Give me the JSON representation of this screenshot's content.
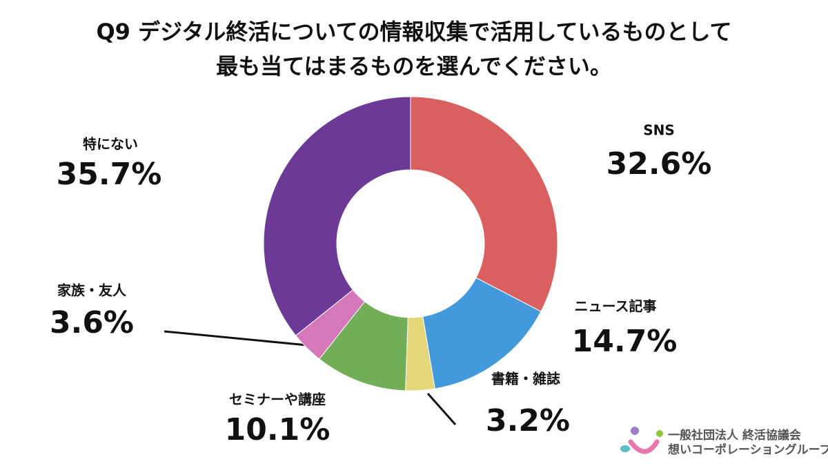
{
  "chart_data": {
    "type": "donut",
    "title": [
      "Q9 デジタル終活についての情報収集で活用しているものとして",
      "最も当てはまるものを選んでください。"
    ],
    "categories": [
      "SNS",
      "ニュース記事",
      "書籍・雑誌",
      "セミナーや講座",
      "家族・友人",
      "特にない"
    ],
    "values": [
      32.6,
      14.7,
      3.2,
      10.1,
      3.6,
      35.7
    ],
    "value_labels": [
      "32.6%",
      "14.7%",
      "3.2%",
      "10.1%",
      "3.6%",
      "35.7%"
    ],
    "colors": [
      "#d9605e",
      "#4299dc",
      "#e3d77a",
      "#72ad57",
      "#d578b9",
      "#6c3a96"
    ]
  },
  "logo": {
    "org": "一般社団法人 終活協議会",
    "group": "想いコーポレーショングループ"
  }
}
